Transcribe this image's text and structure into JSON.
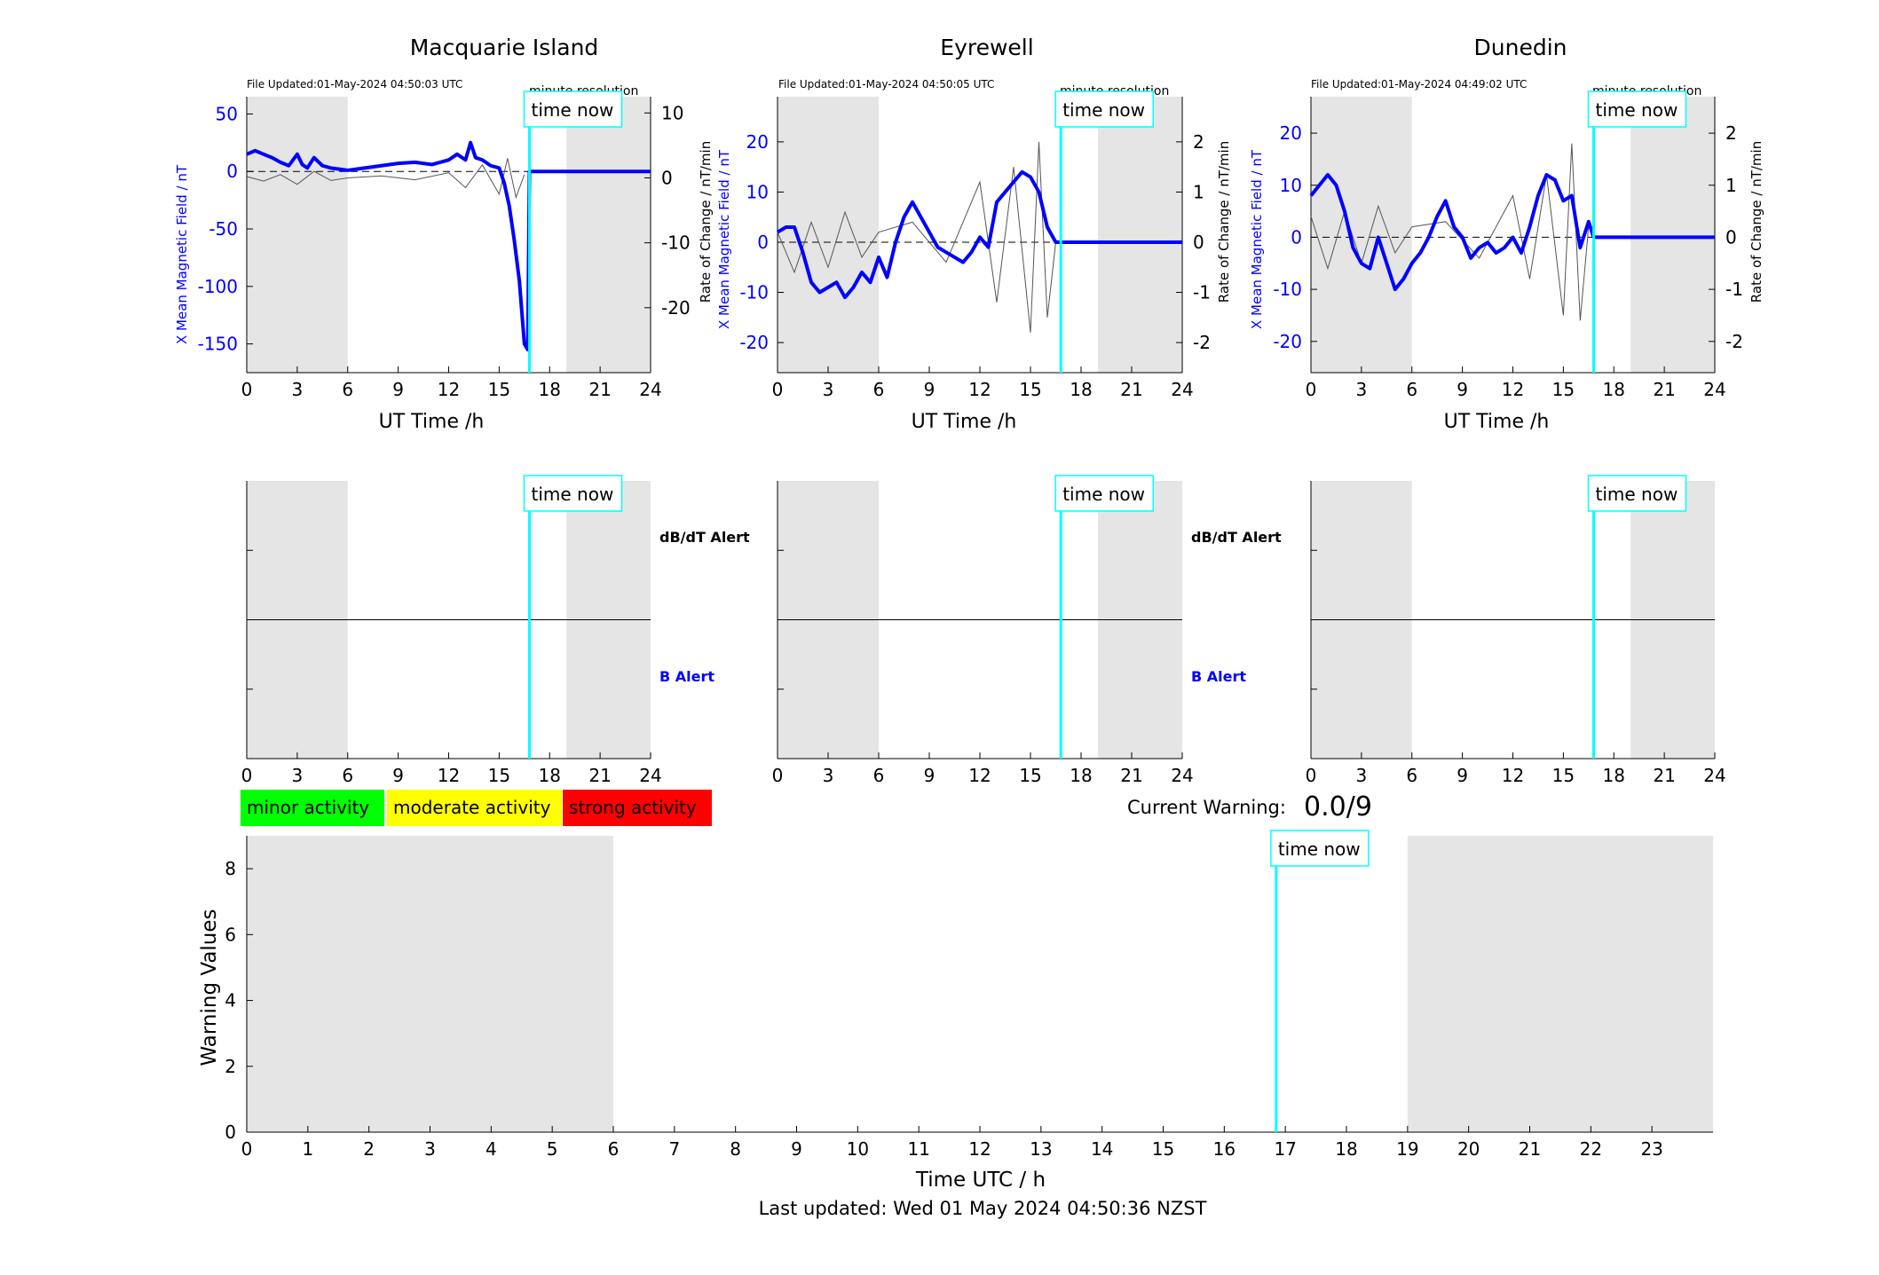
{
  "colors": {
    "field": "#0000ff",
    "rate": "#000000",
    "now": "#00ffff",
    "night": "#e5e5e5",
    "minor": "#00ff00",
    "moderate": "#ffff00",
    "strong": "#ff0000"
  },
  "common": {
    "time_now_label": "time now",
    "xlabel_top": "UT Time /h",
    "ylabel_left": "X Mean Magnetic Field / nT",
    "ylabel_right": "Rate of Change / nT/min",
    "resolution_label": "minute resolution",
    "dbdt_alert_label": "dB/dT Alert",
    "b_alert_label": "B Alert",
    "x_ticks": [
      0,
      3,
      6,
      9,
      12,
      15,
      18,
      21,
      24
    ]
  },
  "stations": [
    {
      "name": "Macquarie Island",
      "updated": "File Updated:01-May-2024 04:50:03 UTC",
      "show_alert_labels": true
    },
    {
      "name": "Eyrewell",
      "updated": "File Updated:01-May-2024 04:50:05 UTC",
      "show_alert_labels": true
    },
    {
      "name": "Dunedin",
      "updated": "File Updated:01-May-2024 04:49:02 UTC",
      "show_alert_labels": false
    }
  ],
  "legend": [
    {
      "label": "minor activity",
      "color": "#00ff00"
    },
    {
      "label": "moderate activity",
      "color": "#ffff00"
    },
    {
      "label": "strong activity",
      "color": "#ff0000"
    }
  ],
  "current_warning": {
    "label": "Current Warning:",
    "value": "0.0/9"
  },
  "bottom": {
    "ylabel": "Warning Values",
    "xlabel": "Time UTC / h",
    "footer": "Last updated: Wed 01 May 2024 04:50:36 NZST"
  },
  "chart_data": [
    {
      "type": "line",
      "title": "Macquarie Island",
      "xlabel": "UT Time /h",
      "ylabel": "X Mean Magnetic Field / nT",
      "ylabel_right": "Rate of Change / nT/min",
      "xlim": [
        0,
        24
      ],
      "ylim": [
        -175,
        65
      ],
      "y_ticks": [
        -150,
        -100,
        -50,
        0,
        50
      ],
      "ylim_right": [
        -30,
        12.5
      ],
      "y_ticks_right": [
        -20,
        -10,
        0,
        10
      ],
      "night_shading": [
        [
          0,
          6
        ],
        [
          19,
          24
        ]
      ],
      "time_now": 16.8,
      "series": [
        {
          "name": "X Mean Magnetic Field",
          "x": [
            0,
            0.5,
            1,
            1.5,
            2,
            2.5,
            3,
            3.3,
            3.6,
            4,
            4.5,
            5,
            5.5,
            6,
            7,
            8,
            9,
            10,
            11,
            12,
            12.5,
            13,
            13.3,
            13.6,
            14,
            14.5,
            15,
            15.3,
            15.6,
            15.9,
            16.2,
            16.5,
            16.7,
            16.8,
            24
          ],
          "y": [
            15,
            18,
            15,
            12,
            8,
            5,
            15,
            6,
            3,
            12,
            5,
            3,
            2,
            1,
            3,
            5,
            7,
            8,
            6,
            10,
            15,
            10,
            25,
            12,
            10,
            5,
            3,
            -10,
            -30,
            -60,
            -95,
            -150,
            -155,
            0,
            0
          ]
        },
        {
          "name": "Rate of Change",
          "x": [
            0,
            1,
            2,
            3,
            4,
            5,
            6,
            8,
            10,
            12,
            13,
            14,
            15,
            15.5,
            16,
            16.5
          ],
          "y": [
            0.2,
            -0.5,
            0.5,
            -1,
            1,
            -0.4,
            0,
            0.3,
            -0.3,
            0.8,
            -1.5,
            2,
            -2.5,
            3,
            -3,
            0.5
          ]
        }
      ]
    },
    {
      "type": "line",
      "title": "Eyrewell",
      "xlabel": "UT Time /h",
      "ylabel": "X Mean Magnetic Field / nT",
      "ylabel_right": "Rate of Change / nT/min",
      "xlim": [
        0,
        24
      ],
      "ylim": [
        -26,
        29
      ],
      "y_ticks": [
        -20,
        -10,
        0,
        10,
        20
      ],
      "ylim_right": [
        -2.6,
        2.9
      ],
      "y_ticks_right": [
        -2,
        -1,
        0,
        1,
        2
      ],
      "night_shading": [
        [
          0,
          6
        ],
        [
          19,
          24
        ]
      ],
      "time_now": 16.8,
      "series": [
        {
          "name": "X Mean Magnetic Field",
          "x": [
            0,
            0.5,
            1,
            1.5,
            2,
            2.5,
            3,
            3.5,
            4,
            4.5,
            5,
            5.5,
            6,
            6.5,
            7,
            7.5,
            8,
            8.5,
            9,
            9.5,
            10,
            10.5,
            11,
            11.5,
            12,
            12.5,
            13,
            13.5,
            14,
            14.5,
            15,
            15.5,
            16,
            16.5,
            24
          ],
          "y": [
            2,
            3,
            3,
            -2,
            -8,
            -10,
            -9,
            -8,
            -11,
            -9,
            -6,
            -8,
            -3,
            -7,
            0,
            5,
            8,
            5,
            2,
            -1,
            -2,
            -3,
            -4,
            -2,
            1,
            -1,
            8,
            10,
            12,
            14,
            13,
            10,
            3,
            0,
            0
          ]
        },
        {
          "name": "Rate of Change",
          "x": [
            0,
            1,
            2,
            3,
            4,
            5,
            6,
            8,
            10,
            12,
            13,
            14,
            15,
            15.5,
            16,
            16.5
          ],
          "y": [
            0.2,
            -0.6,
            0.4,
            -0.5,
            0.6,
            -0.3,
            0.2,
            0.4,
            -0.4,
            1.2,
            -1.2,
            1.5,
            -1.8,
            2,
            -1.5,
            0
          ]
        }
      ]
    },
    {
      "type": "line",
      "title": "Dunedin",
      "xlabel": "UT Time /h",
      "ylabel": "X Mean Magnetic Field / nT",
      "ylabel_right": "Rate of Change / nT/min",
      "xlim": [
        0,
        24
      ],
      "ylim": [
        -26,
        27
      ],
      "y_ticks": [
        -20,
        -10,
        0,
        10,
        20
      ],
      "ylim_right": [
        -2.6,
        2.7
      ],
      "y_ticks_right": [
        -2,
        -1,
        0,
        1,
        2
      ],
      "night_shading": [
        [
          0,
          6
        ],
        [
          19,
          24
        ]
      ],
      "time_now": 16.8,
      "series": [
        {
          "name": "X Mean Magnetic Field",
          "x": [
            0,
            0.5,
            1,
            1.5,
            2,
            2.5,
            3,
            3.5,
            4,
            4.5,
            5,
            5.5,
            6,
            6.5,
            7,
            7.5,
            8,
            8.5,
            9,
            9.5,
            10,
            10.5,
            11,
            11.5,
            12,
            12.5,
            13,
            13.5,
            14,
            14.5,
            15,
            15.5,
            16,
            16.5,
            16.8,
            24
          ],
          "y": [
            8,
            10,
            12,
            10,
            5,
            -2,
            -5,
            -6,
            0,
            -5,
            -10,
            -8,
            -5,
            -3,
            0,
            4,
            7,
            2,
            0,
            -4,
            -2,
            -1,
            -3,
            -2,
            0,
            -3,
            2,
            8,
            12,
            11,
            7,
            8,
            -2,
            3,
            0,
            0
          ]
        },
        {
          "name": "Rate of Change",
          "x": [
            0,
            1,
            2,
            3,
            4,
            5,
            6,
            8,
            10,
            12,
            13,
            14,
            15,
            15.5,
            16,
            16.5
          ],
          "y": [
            0.4,
            -0.6,
            0.5,
            -0.5,
            0.6,
            -0.3,
            0.2,
            0.3,
            -0.4,
            0.8,
            -0.8,
            1.2,
            -1.5,
            1.8,
            -1.6,
            0.2
          ]
        }
      ]
    },
    {
      "type": "line",
      "title": "",
      "xlabel": "Time UTC / h",
      "ylabel": "Warning Values",
      "xlim": [
        0,
        24
      ],
      "ylim": [
        0,
        9
      ],
      "y_ticks": [
        0,
        2,
        4,
        6,
        8
      ],
      "x_ticks": [
        0,
        1,
        2,
        3,
        4,
        5,
        6,
        7,
        8,
        9,
        10,
        11,
        12,
        13,
        14,
        15,
        16,
        17,
        18,
        19,
        20,
        21,
        22,
        23
      ],
      "night_shading": [
        [
          0,
          6
        ],
        [
          19,
          24
        ]
      ],
      "time_now": 16.85,
      "series": []
    }
  ]
}
